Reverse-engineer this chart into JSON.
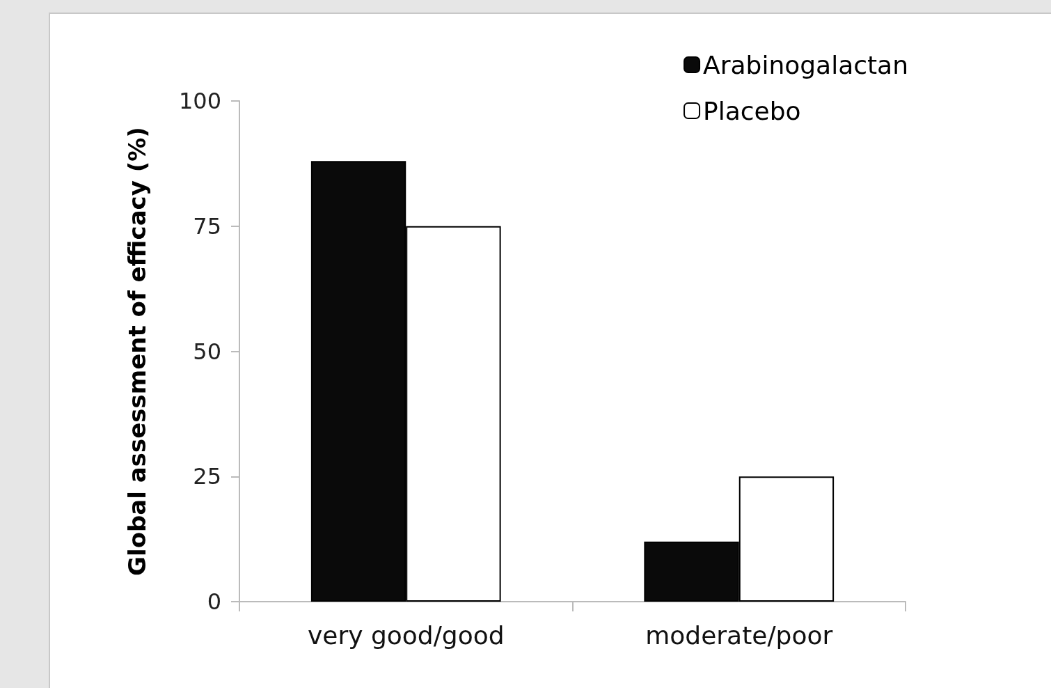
{
  "chart_data": {
    "type": "bar",
    "ylabel": "Global assessment of efficacy (%)",
    "categories": [
      "very good/good",
      "moderate/poor"
    ],
    "series": [
      {
        "name": "Arabinogalactan",
        "color": "#0a0a0a",
        "values": [
          88,
          12
        ]
      },
      {
        "name": "Placebo",
        "color": "#ffffff",
        "values": [
          75,
          25
        ]
      }
    ],
    "ylim": [
      0,
      100
    ],
    "yticks": [
      0,
      25,
      50,
      75,
      100
    ],
    "grid": false,
    "legend": "top right"
  }
}
